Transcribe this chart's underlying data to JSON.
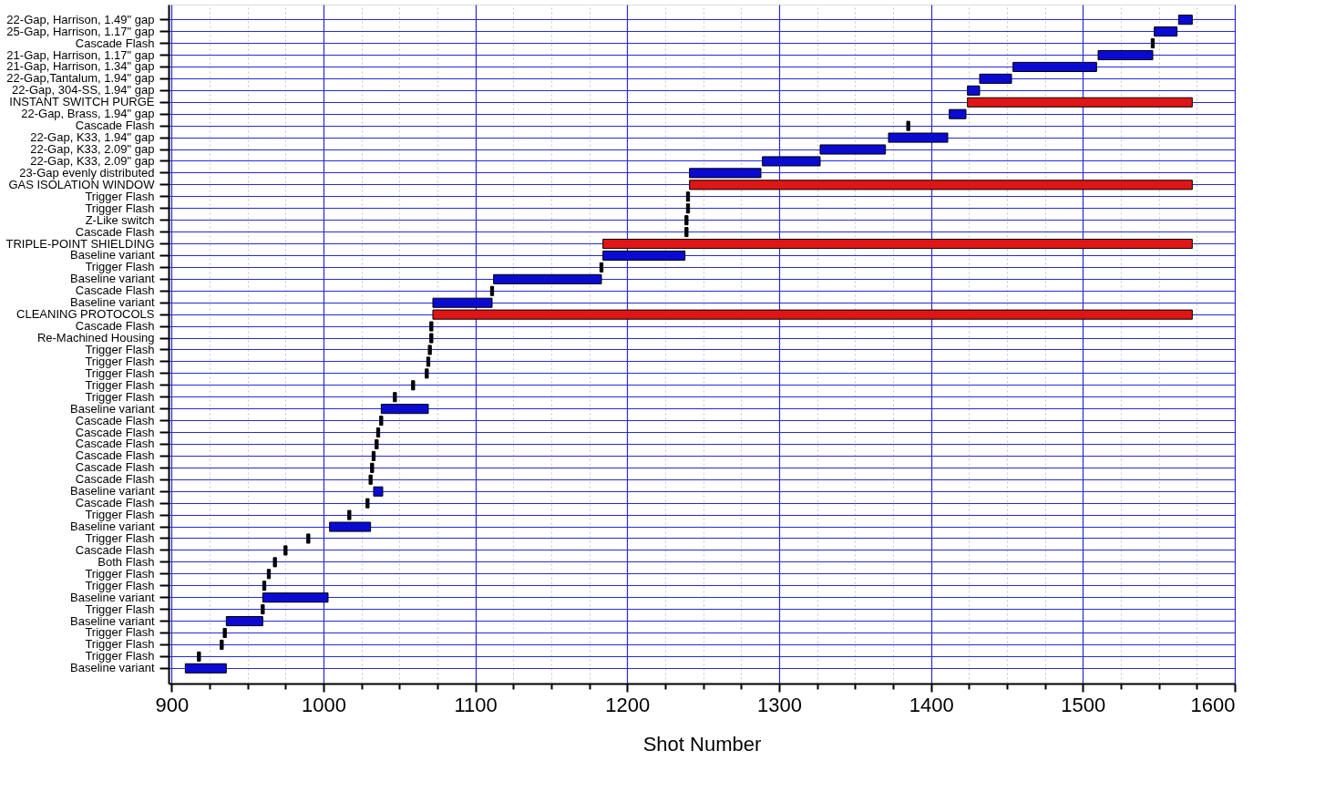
{
  "chart_data": {
    "type": "bar",
    "orientation": "horizontal",
    "xlabel": "Shot Number",
    "categories": [
      "22-Gap, Harrison, 1.49\" gap",
      "25-Gap, Harrison, 1.17\" gap",
      "Cascade Flash",
      "21-Gap, Harrison, 1.17\" gap",
      "21-Gap, Harrison, 1.34\" gap",
      "22-Gap,Tantalum, 1.94\" gap",
      "22-Gap, 304-SS, 1.94\" gap",
      "INSTANT SWITCH PURGE",
      "22-Gap, Brass, 1.94\" gap",
      "Cascade Flash",
      "22-Gap, K33, 1.94\" gap",
      "22-Gap, K33, 2.09\" gap",
      "22-Gap, K33, 2.09\" gap",
      "23-Gap evenly distributed",
      "GAS ISOLATION WINDOW",
      "Trigger Flash",
      "Trigger Flash",
      "Z-Like switch",
      "Cascade Flash",
      "TRIPLE-POINT SHIELDING",
      "Baseline variant",
      "Trigger Flash",
      "Baseline variant",
      "Cascade Flash",
      "Baseline variant",
      "CLEANING PROTOCOLS",
      "Cascade Flash",
      "Re-Machined Housing",
      "Trigger Flash",
      "Trigger Flash",
      "Trigger Flash",
      "Trigger Flash",
      "Trigger Flash",
      "Baseline variant",
      "Cascade Flash",
      "Cascade Flash",
      "Cascade Flash",
      "Cascade Flash",
      "Cascade Flash",
      "Cascade Flash",
      "Baseline variant",
      "Cascade Flash",
      "Trigger Flash",
      "Baseline variant",
      "Trigger Flash",
      "Cascade Flash",
      "Both Flash",
      "Trigger Flash",
      "Trigger Flash",
      "Baseline variant",
      "Trigger Flash",
      "Baseline variant",
      "Trigger Flash",
      "Trigger Flash",
      "Trigger Flash",
      "Baseline variant"
    ],
    "base": [
      1563,
      1547,
      1545,
      1510,
      1454,
      1432,
      1424,
      1424,
      1412,
      1384,
      1372,
      1327,
      1289,
      1241,
      1241,
      1239,
      1239,
      1238,
      1238,
      1184,
      1184,
      1182,
      1112,
      1110,
      1072,
      1072,
      1070,
      1070,
      1069,
      1068,
      1067,
      1058,
      1046,
      1038,
      1037,
      1035,
      1034,
      1032,
      1031,
      1030,
      1033,
      1028,
      1016,
      1004,
      989,
      974,
      967,
      963,
      960,
      960,
      959,
      936,
      934,
      932,
      917,
      909
    ],
    "values": [
      9,
      15,
      2,
      36,
      55,
      21,
      8,
      148,
      11,
      2,
      39,
      43,
      38,
      47,
      331,
      2,
      2,
      2,
      2,
      388,
      54,
      2,
      71,
      2,
      39,
      500,
      2,
      2,
      2,
      2,
      2,
      2,
      2,
      31,
      2,
      2,
      2,
      2,
      2,
      2,
      6,
      2,
      2,
      27,
      2,
      2,
      2,
      2,
      2,
      43,
      2,
      24,
      2,
      2,
      2,
      27
    ],
    "colors": [
      "#0a0ad2",
      "#0a0ad2",
      "#000000",
      "#0a0ad2",
      "#0a0ad2",
      "#0a0ad2",
      "#0a0ad2",
      "#e01515",
      "#0a0ad2",
      "#000000",
      "#0a0ad2",
      "#0a0ad2",
      "#0a0ad2",
      "#0a0ad2",
      "#e01515",
      "#000000",
      "#000000",
      "#000000",
      "#000000",
      "#e01515",
      "#0a0ad2",
      "#000000",
      "#0a0ad2",
      "#000000",
      "#0a0ad2",
      "#e01515",
      "#000000",
      "#000000",
      "#000000",
      "#000000",
      "#000000",
      "#000000",
      "#000000",
      "#0a0ad2",
      "#000000",
      "#000000",
      "#000000",
      "#000000",
      "#000000",
      "#000000",
      "#0a0ad2",
      "#000000",
      "#000000",
      "#0a0ad2",
      "#000000",
      "#000000",
      "#000000",
      "#000000",
      "#000000",
      "#0a0ad2",
      "#000000",
      "#0a0ad2",
      "#000000",
      "#000000",
      "#000000",
      "#0a0ad2"
    ],
    "xlim": [
      898,
      1600
    ],
    "xticks": [
      900,
      {
        "value": 925,
        "label": null
      },
      {
        "value": 950,
        "label": null
      },
      {
        "value": 975,
        "label": null
      },
      1000,
      {
        "value": 1025,
        "label": null
      },
      {
        "value": 1050,
        "label": null
      },
      {
        "value": 1075,
        "label": null
      },
      1100,
      {
        "value": 1125,
        "label": null
      },
      {
        "value": 1150,
        "label": null
      },
      {
        "value": 1175,
        "label": null
      },
      1200,
      {
        "value": 1225,
        "label": null
      },
      {
        "value": 1250,
        "label": null
      },
      {
        "value": 1275,
        "label": null
      },
      1300,
      {
        "value": 1325,
        "label": null
      },
      {
        "value": 1350,
        "label": null
      },
      {
        "value": 1375,
        "label": null
      },
      1400,
      {
        "value": 1425,
        "label": null
      },
      {
        "value": 1450,
        "label": null
      },
      {
        "value": 1475,
        "label": null
      },
      1500,
      {
        "value": 1525,
        "label": null
      },
      {
        "value": 1550,
        "label": null
      },
      {
        "value": 1575,
        "label": null
      },
      1600
    ],
    "grid": true
  }
}
